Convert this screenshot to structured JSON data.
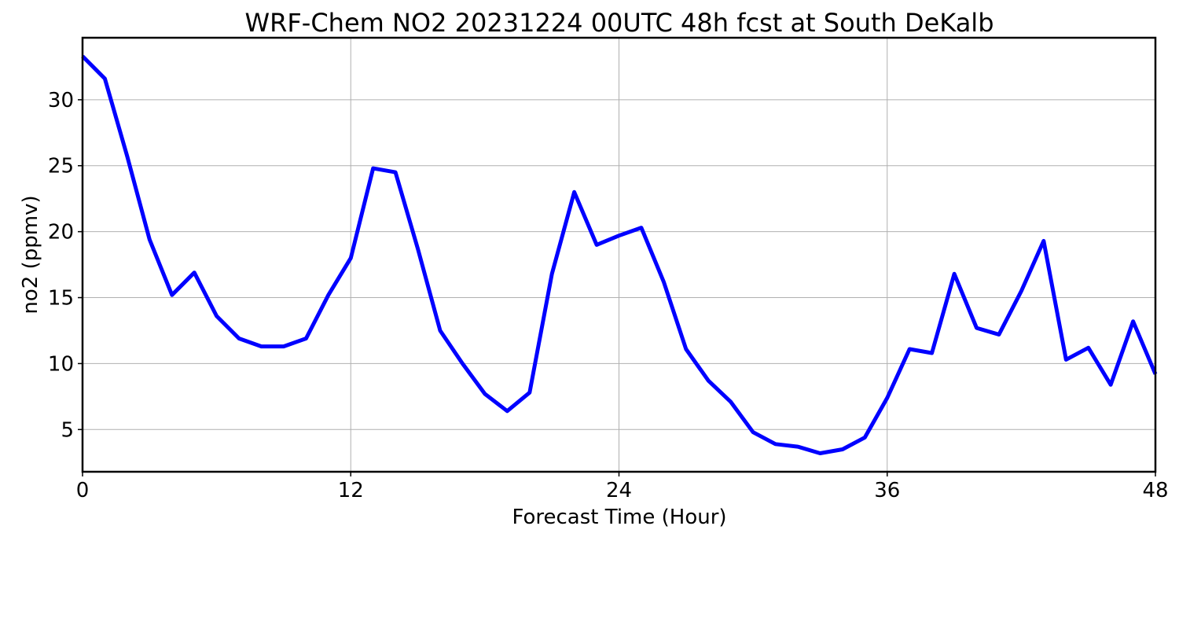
{
  "chart_data": {
    "type": "line",
    "title": "WRF-Chem NO2  20231224 00UTC 48h fcst at South DeKalb",
    "xlabel": "Forecast Time (Hour)",
    "ylabel": "no2  (ppmv)",
    "xlim": [
      0,
      48
    ],
    "ylim": [
      1.8,
      34.7
    ],
    "xticks": [
      0,
      12,
      24,
      36,
      48
    ],
    "yticks": [
      5,
      10,
      15,
      20,
      25,
      30
    ],
    "grid": true,
    "series": [
      {
        "color": "#0000ff",
        "x": [
          0,
          1,
          2,
          3,
          4,
          5,
          6,
          7,
          8,
          9,
          10,
          11,
          12,
          13,
          14,
          15,
          16,
          17,
          18,
          19,
          20,
          21,
          22,
          23,
          24,
          25,
          26,
          27,
          28,
          29,
          30,
          31,
          32,
          33,
          34,
          35,
          36,
          37,
          38,
          39,
          40,
          41,
          42,
          43,
          44,
          45,
          46,
          47,
          48
        ],
        "values": [
          33.3,
          31.6,
          25.7,
          19.4,
          15.2,
          16.9,
          13.6,
          11.9,
          11.3,
          11.3,
          11.9,
          15.2,
          18.0,
          24.8,
          24.5,
          18.7,
          12.5,
          10.0,
          7.7,
          6.4,
          7.8,
          16.8,
          23.0,
          19.0,
          19.7,
          20.3,
          16.2,
          11.1,
          8.7,
          7.1,
          4.8,
          3.9,
          3.7,
          3.2,
          3.5,
          4.4,
          7.4,
          11.1,
          10.8,
          16.8,
          12.7,
          12.2,
          15.5,
          19.3,
          10.3,
          11.2,
          8.4,
          13.2,
          9.2
        ]
      }
    ]
  }
}
